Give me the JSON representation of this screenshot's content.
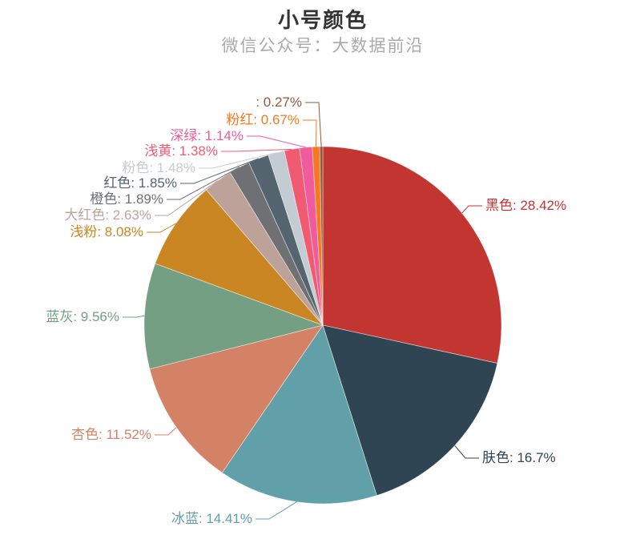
{
  "header": {
    "title": "小号颜色",
    "subtitle": "微信公众号：大数据前沿"
  },
  "chart_data": {
    "type": "pie",
    "title": "小号颜色",
    "subtitle": "微信公众号：大数据前沿",
    "label_format": "{b}: {d}%",
    "legend": "none",
    "unit": "%",
    "items": [
      {
        "name": "黑色",
        "value": 28.42,
        "label": "黑色: 28.42%",
        "color": "#c23531"
      },
      {
        "name": "肤色",
        "value": 16.7,
        "label": "肤色: 16.7%",
        "color": "#2f4554"
      },
      {
        "name": "冰蓝",
        "value": 14.41,
        "label": "冰蓝: 14.41%",
        "color": "#61a0a8"
      },
      {
        "name": "杏色",
        "value": 11.52,
        "label": "杏色: 11.52%",
        "color": "#d48265"
      },
      {
        "name": "蓝灰",
        "value": 9.56,
        "label": "蓝灰: 9.56%",
        "color": "#749f83"
      },
      {
        "name": "浅粉",
        "value": 8.08,
        "label": "浅粉: 8.08%",
        "color": "#ca8622"
      },
      {
        "name": "大红色",
        "value": 2.63,
        "label": "大红色: 2.63%",
        "color": "#bda29a"
      },
      {
        "name": "橙色",
        "value": 1.89,
        "label": "橙色: 1.89%",
        "color": "#6e7074"
      },
      {
        "name": "红色",
        "value": 1.85,
        "label": "红色: 1.85%",
        "color": "#546570"
      },
      {
        "name": "粉色",
        "value": 1.48,
        "label": "粉色: 1.48%",
        "color": "#c4ccd3"
      },
      {
        "name": "浅黄",
        "value": 1.38,
        "label": "浅黄: 1.38%",
        "color": "#f05b72"
      },
      {
        "name": "深绿",
        "value": 1.14,
        "label": "深绿: 1.14%",
        "color": "#ef5b9c"
      },
      {
        "name": "粉红",
        "value": 0.67,
        "label": "粉红: 0.67%",
        "color": "#f47920"
      },
      {
        "name": "",
        "value": 0.27,
        "label": ": 0.27%",
        "color": "#905a3d"
      }
    ]
  }
}
